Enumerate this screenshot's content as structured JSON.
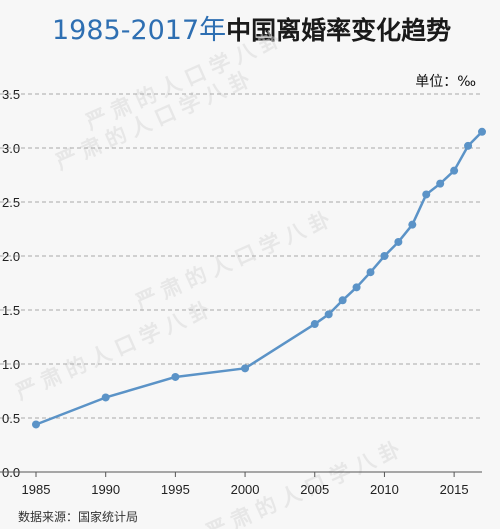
{
  "header": {
    "title_years": "1985-2017年",
    "title_rest": "中国离婚率变化趋势"
  },
  "unit_label": "单位：‰",
  "source": "数据来源：国家统计局",
  "watermark_text": "严肃的人口学八卦",
  "colors": {
    "line": "#5b93c7",
    "title_accent": "#2e6fb2",
    "grid": "#aaaaaa",
    "background": "#f7f7f7"
  },
  "chart_data": {
    "type": "line",
    "title": "1985-2017年中国离婚率变化趋势",
    "xlabel": "",
    "ylabel": "",
    "xlim": [
      1985,
      2017
    ],
    "ylim": [
      0,
      3.5
    ],
    "grid": "horizontal-dashed",
    "x_ticks": [
      1985,
      1990,
      1995,
      2000,
      2005,
      2010,
      2015
    ],
    "y_ticks": [
      "0.0",
      "0.5",
      "1.0",
      "1.5",
      "2.0",
      "2.5",
      "3.0",
      "3.5"
    ],
    "series": [
      {
        "x": [
          1985,
          1990,
          1995,
          2000,
          2005,
          2006,
          2007,
          2008,
          2009,
          2010,
          2011,
          2012,
          2013,
          2014,
          2015,
          2016,
          2017
        ],
        "values": [
          0.44,
          0.69,
          0.88,
          0.96,
          1.37,
          1.46,
          1.59,
          1.71,
          1.85,
          2.0,
          2.13,
          2.29,
          2.57,
          2.67,
          2.79,
          3.02,
          3.15
        ]
      }
    ]
  }
}
